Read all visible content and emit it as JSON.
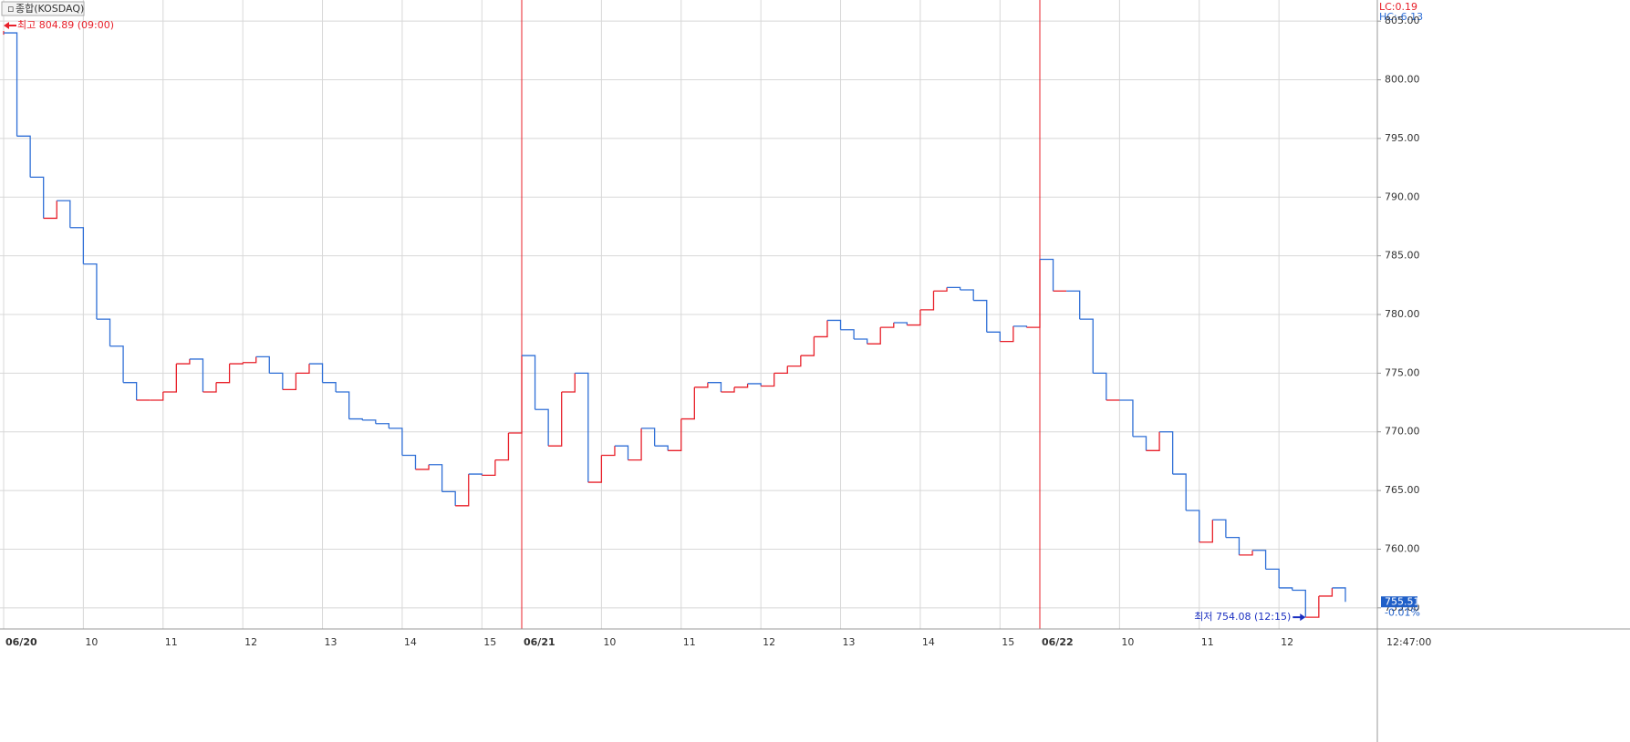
{
  "chart_data": {
    "type": "line",
    "title": "종합(KOSDAQ)",
    "categories": [
      "06/20",
      null,
      null,
      null,
      null,
      null,
      "10",
      null,
      null,
      null,
      null,
      null,
      "11",
      null,
      null,
      null,
      null,
      null,
      "12",
      null,
      null,
      null,
      null,
      null,
      "13",
      null,
      null,
      null,
      null,
      null,
      "14",
      null,
      null,
      null,
      null,
      null,
      "15",
      null,
      null,
      "06/21",
      null,
      null,
      null,
      null,
      null,
      "10",
      null,
      null,
      null,
      null,
      null,
      "11",
      null,
      null,
      null,
      null,
      null,
      "12",
      null,
      null,
      null,
      null,
      null,
      "13",
      null,
      null,
      null,
      null,
      null,
      "14",
      null,
      null,
      null,
      null,
      null,
      "15",
      null,
      null,
      "06/22",
      null,
      null,
      null,
      null,
      null,
      "10",
      null,
      null,
      null,
      null,
      null,
      "11",
      null,
      null,
      null,
      null,
      null,
      "12",
      null,
      null,
      null,
      null,
      null
    ],
    "values": [
      804.0,
      795.2,
      791.7,
      788.2,
      789.7,
      787.4,
      784.3,
      779.6,
      777.3,
      774.2,
      772.7,
      772.7,
      773.4,
      775.8,
      776.2,
      773.4,
      774.2,
      775.8,
      775.9,
      776.4,
      775.0,
      773.6,
      775.0,
      775.8,
      774.2,
      773.4,
      771.1,
      771.0,
      770.7,
      770.3,
      768.0,
      766.8,
      767.2,
      764.9,
      763.7,
      766.4,
      766.3,
      767.6,
      769.9,
      776.5,
      771.9,
      768.8,
      773.4,
      775.0,
      765.7,
      768.0,
      768.8,
      767.6,
      770.3,
      768.8,
      768.4,
      771.1,
      773.8,
      774.2,
      773.4,
      773.8,
      774.1,
      773.9,
      775.0,
      775.6,
      776.5,
      778.1,
      779.5,
      778.7,
      777.9,
      777.5,
      778.9,
      779.3,
      779.1,
      780.4,
      782.0,
      782.3,
      782.1,
      781.2,
      778.5,
      777.7,
      779.0,
      778.9,
      784.7,
      782.0,
      782.0,
      779.6,
      775.0,
      772.7,
      772.7,
      769.6,
      768.4,
      770.0,
      766.4,
      763.3,
      760.6,
      762.5,
      761.0,
      759.5,
      759.9,
      758.3,
      756.7,
      756.5,
      754.2,
      756.0,
      756.7,
      755.51
    ],
    "up_color": "#e8202a",
    "down_color": "#2f6fd6",
    "ylim": [
      753.2,
      806.8
    ],
    "yticks": [
      {
        "value": 755,
        "label": "755.00"
      },
      {
        "value": 760,
        "label": "760.00"
      },
      {
        "value": 765,
        "label": "765.00"
      },
      {
        "value": 770,
        "label": "770.00"
      },
      {
        "value": 775,
        "label": "775.00"
      },
      {
        "value": 780,
        "label": "780.00"
      },
      {
        "value": 785,
        "label": "785.00"
      },
      {
        "value": 790,
        "label": "790.00"
      },
      {
        "value": 795,
        "label": "795.00"
      },
      {
        "value": 800,
        "label": "800.00"
      },
      {
        "value": 805,
        "label": "805.00"
      }
    ],
    "grid": true,
    "high_label": "최고 804.89 (09:00)",
    "low_label": "최저 754.08 (12:15)",
    "lc_label": "LC:0.19",
    "hc_label": "HC:-6.13",
    "last_price": {
      "value": 755.51,
      "label": "755.51"
    },
    "change_label": "-0.01%",
    "time_label": "12:47:00"
  }
}
